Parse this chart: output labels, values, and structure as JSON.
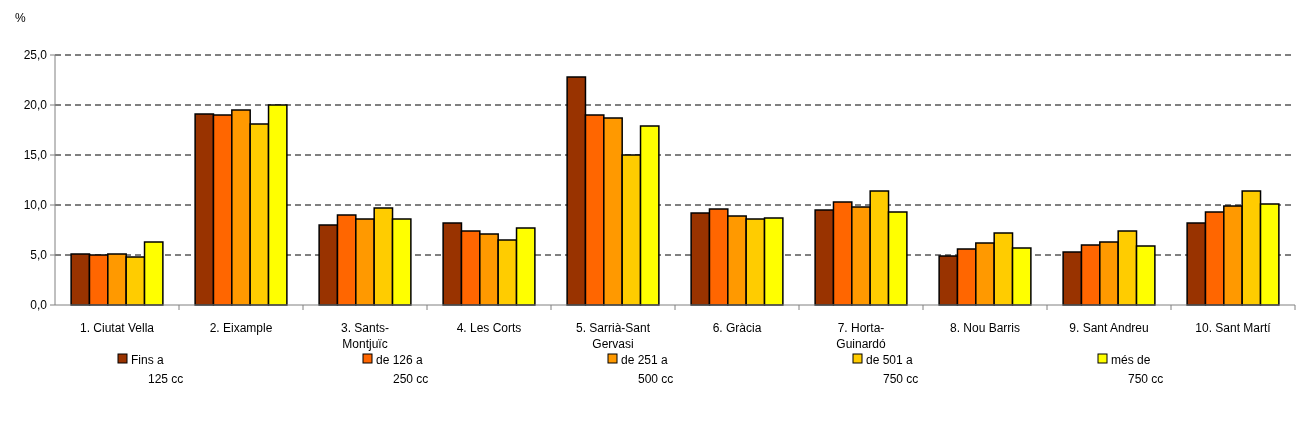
{
  "chart_data": {
    "type": "bar",
    "ylabel": "%",
    "categories": [
      "1. Ciutat Vella",
      "2. Eixample",
      "3. Sants-Montjuïc",
      "4. Les Corts",
      "5. Sarrià-Sant Gervasi",
      "6. Gràcia",
      "7. Horta-Guinardó",
      "8. Nou Barris",
      "9. Sant Andreu",
      "10. Sant Martí"
    ],
    "series": [
      {
        "name": "Fins a 125 cc",
        "color": "#993300",
        "values": [
          5.1,
          19.1,
          8.0,
          8.2,
          22.8,
          9.2,
          9.5,
          4.9,
          5.3,
          8.2
        ]
      },
      {
        "name": "de 126 a 250 cc",
        "color": "#ff6600",
        "values": [
          5.0,
          19.0,
          9.0,
          7.4,
          19.0,
          9.6,
          10.3,
          5.6,
          6.0,
          9.3
        ]
      },
      {
        "name": "de 251 a 500 cc",
        "color": "#ff9900",
        "values": [
          5.1,
          19.5,
          8.6,
          7.1,
          18.7,
          8.9,
          9.8,
          6.2,
          6.3,
          9.9
        ]
      },
      {
        "name": "de 501 a 750 cc",
        "color": "#ffcc00",
        "values": [
          4.8,
          18.1,
          9.7,
          6.5,
          15.0,
          8.6,
          11.4,
          7.2,
          7.4,
          11.4
        ]
      },
      {
        "name": "més de 750 cc",
        "color": "#ffff00",
        "values": [
          6.3,
          20.0,
          8.6,
          7.7,
          17.9,
          8.7,
          9.3,
          5.7,
          5.9,
          10.1
        ]
      }
    ],
    "ylim": [
      0,
      25
    ],
    "yticks": [
      {
        "value": 0,
        "label": "0,0"
      },
      {
        "value": 5,
        "label": "5,0"
      },
      {
        "value": 10,
        "label": "10,0"
      },
      {
        "value": 15,
        "label": "15,0"
      },
      {
        "value": 20,
        "label": "20,0"
      },
      {
        "value": 25,
        "label": "25,0"
      }
    ],
    "grid": "y",
    "legend": "bottom"
  }
}
